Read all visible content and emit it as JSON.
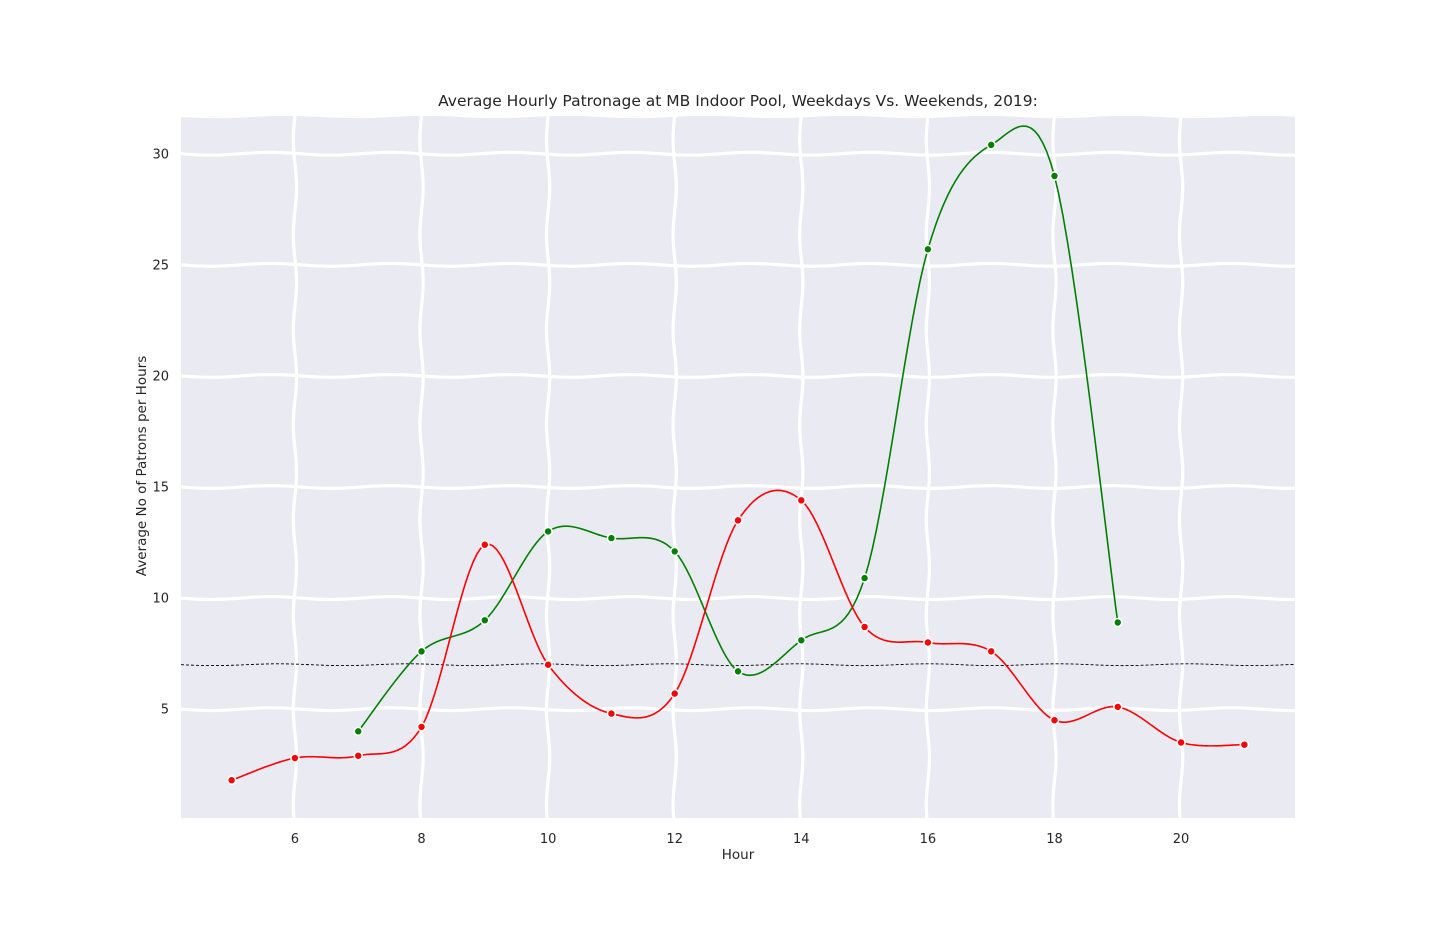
{
  "chart_data": {
    "type": "line",
    "title": "Average Hourly Patronage at MB Indoor Pool, Weekdays Vs. Weekends, 2019:",
    "xlabel": "Hour",
    "ylabel": "Average No of Patrons per Hours",
    "xlim": [
      4.2,
      21.8
    ],
    "ylim": [
      0.1,
      31.7
    ],
    "xticks": [
      6,
      8,
      10,
      12,
      14,
      16,
      18,
      20
    ],
    "yticks": [
      5,
      10,
      15,
      20,
      25,
      30
    ],
    "grid": true,
    "reference_line": {
      "y": 7.0,
      "style": "dashed",
      "color": "#000000"
    },
    "series": [
      {
        "color": "#008000",
        "x": [
          7,
          8,
          9,
          10,
          11,
          12,
          13,
          14,
          15,
          16,
          17,
          18,
          19
        ],
        "y": [
          4.0,
          7.6,
          9.0,
          13.0,
          12.7,
          12.1,
          6.7,
          8.1,
          10.9,
          25.7,
          30.4,
          29.0,
          8.9
        ]
      },
      {
        "color": "#ff0000",
        "x": [
          5,
          6,
          7,
          8,
          9,
          10,
          11,
          12,
          13,
          14,
          15,
          16,
          17,
          18,
          19,
          20,
          21
        ],
        "y": [
          1.8,
          2.8,
          2.9,
          4.2,
          12.4,
          7.0,
          4.8,
          5.7,
          13.5,
          14.4,
          8.7,
          8.0,
          7.6,
          4.5,
          5.1,
          3.5,
          3.4
        ]
      }
    ]
  }
}
